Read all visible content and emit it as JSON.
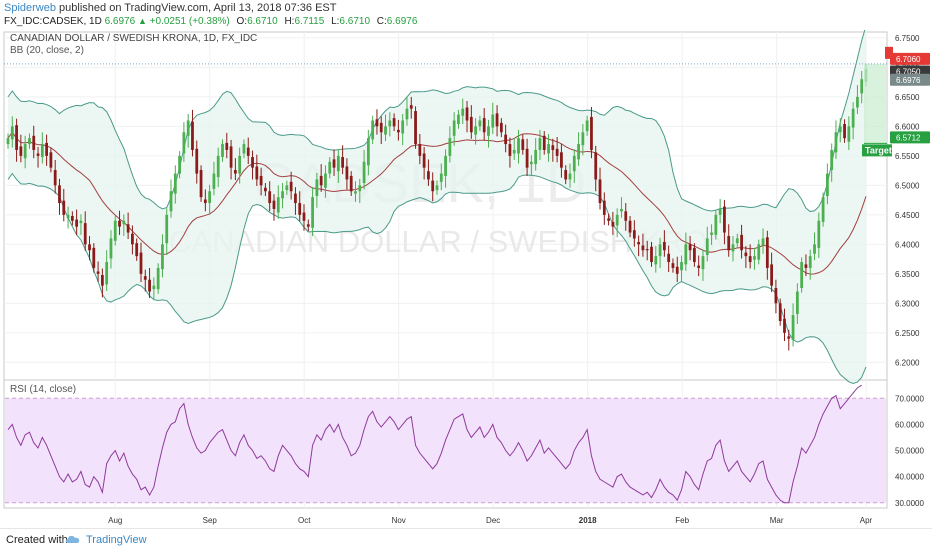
{
  "header": {
    "author": "Spiderweb",
    "published_text": "published on TradingView.com, April 13, 2018 07:36 EST",
    "symbol": "FX_IDC:CADSEK, 1D",
    "last": "6.6976",
    "change": "+0.0251 (+0.38%)",
    "o_label": "O:",
    "o_value": "6.6710",
    "h_label": "H:",
    "h_value": "6.7115",
    "l_label": "L:",
    "l_value": "6.6710",
    "c_label": "C:",
    "c_value": "6.6976"
  },
  "main_panel": {
    "title": "CANADIAN DOLLAR / SWEDISH KRONA, 1D, FX_IDC",
    "indicator": "BB (20, close, 2)",
    "watermark_symbol": "CADSEK, 1D",
    "watermark_name": "CANADIAN DOLLAR / SWEDISH KRONA"
  },
  "rsi_panel": {
    "label": "RSI (14, close)"
  },
  "price_tags": {
    "red": "6.7060",
    "dark": "6.7050",
    "grey": "6.6976",
    "target_value": "6.5712",
    "target_label": "Target"
  },
  "colors": {
    "bull": "#4caf50",
    "bear": "#8b1a1a",
    "band": "#4a9a8a",
    "band_fill": "#e5f4ef",
    "mid": "#a24040",
    "rsi_line": "#8e3b9b",
    "rsi_fill": "#f3e2fb",
    "target": "#26a040",
    "red_tag": "#e53935"
  },
  "footer": {
    "created_with": "Created with",
    "brand": "TradingView"
  },
  "chart_data": {
    "type": "candlestick",
    "price_axis": {
      "ticks": [
        "6.7500",
        "6.7000",
        "6.6500",
        "6.6000",
        "6.5500",
        "6.5000",
        "6.4500",
        "6.4000",
        "6.3500",
        "6.3000",
        "6.2500",
        "6.2000"
      ],
      "range": [
        6.17,
        6.76
      ]
    },
    "rsi_axis": {
      "ticks": [
        "70.0000",
        "60.0000",
        "50.0000",
        "40.0000",
        "30.0000"
      ],
      "range": [
        28,
        77
      ],
      "band": [
        30,
        70
      ]
    },
    "time_axis": {
      "labels": [
        "Aug",
        "Sep",
        "Oct",
        "Nov",
        "Dec",
        "2018",
        "Feb",
        "Mar",
        "Apr"
      ],
      "positions": [
        42,
        79,
        116,
        153,
        190,
        227,
        264,
        301,
        336
      ]
    },
    "close": [
      6.58,
      6.6,
      6.56,
      6.55,
      6.57,
      6.58,
      6.56,
      6.55,
      6.57,
      6.55,
      6.53,
      6.5,
      6.47,
      6.45,
      6.45,
      6.44,
      6.43,
      6.44,
      6.4,
      6.39,
      6.36,
      6.35,
      6.33,
      6.37,
      6.41,
      6.44,
      6.43,
      6.44,
      6.42,
      6.4,
      6.38,
      6.35,
      6.34,
      6.32,
      6.33,
      6.36,
      6.4,
      6.45,
      6.49,
      6.52,
      6.55,
      6.59,
      6.61,
      6.56,
      6.52,
      6.48,
      6.47,
      6.49,
      6.52,
      6.55,
      6.57,
      6.56,
      6.53,
      6.52,
      6.55,
      6.57,
      6.55,
      6.53,
      6.51,
      6.5,
      6.49,
      6.47,
      6.46,
      6.48,
      6.49,
      6.5,
      6.49,
      6.47,
      6.45,
      6.44,
      6.43,
      6.48,
      6.51,
      6.5,
      6.52,
      6.54,
      6.53,
      6.55,
      6.53,
      6.51,
      6.49,
      6.49,
      6.5,
      6.54,
      6.58,
      6.61,
      6.6,
      6.59,
      6.6,
      6.61,
      6.6,
      6.59,
      6.61,
      6.63,
      6.63,
      6.57,
      6.55,
      6.53,
      6.51,
      6.49,
      6.5,
      6.52,
      6.55,
      6.58,
      6.61,
      6.62,
      6.63,
      6.61,
      6.59,
      6.6,
      6.61,
      6.59,
      6.6,
      6.62,
      6.6,
      6.59,
      6.57,
      6.55,
      6.56,
      6.58,
      6.56,
      6.53,
      6.54,
      6.56,
      6.58,
      6.56,
      6.57,
      6.56,
      6.55,
      6.53,
      6.51,
      6.52,
      6.55,
      6.57,
      6.59,
      6.61,
      6.56,
      6.51,
      6.47,
      6.45,
      6.44,
      6.43,
      6.45,
      6.46,
      6.44,
      6.42,
      6.41,
      6.4,
      6.39,
      6.39,
      6.37,
      6.38,
      6.4,
      6.39,
      6.37,
      6.36,
      6.35,
      6.37,
      6.4,
      6.39,
      6.37,
      6.36,
      6.38,
      6.41,
      6.42,
      6.45,
      6.46,
      6.42,
      6.39,
      6.4,
      6.41,
      6.39,
      6.38,
      6.37,
      6.38,
      6.4,
      6.41,
      6.36,
      6.33,
      6.3,
      6.27,
      6.25,
      6.24,
      6.28,
      6.32,
      6.37,
      6.36,
      6.38,
      6.4,
      6.44,
      6.48,
      6.52,
      6.56,
      6.59,
      6.6,
      6.58,
      6.6,
      6.63,
      6.65,
      6.68,
      6.6976
    ],
    "rsi": [
      58,
      60,
      55,
      52,
      56,
      57,
      53,
      51,
      55,
      52,
      48,
      44,
      40,
      38,
      41,
      38,
      39,
      42,
      37,
      36,
      40,
      38,
      34,
      45,
      48,
      50,
      46,
      49,
      44,
      41,
      39,
      35,
      36,
      33,
      36,
      44,
      51,
      57,
      60,
      61,
      66,
      68,
      60,
      55,
      51,
      49,
      50,
      53,
      55,
      57,
      58,
      54,
      50,
      48,
      53,
      56,
      52,
      50,
      47,
      48,
      46,
      43,
      42,
      48,
      52,
      50,
      48,
      45,
      43,
      42,
      40,
      52,
      56,
      54,
      58,
      60,
      57,
      60,
      55,
      52,
      48,
      49,
      52,
      58,
      63,
      65,
      61,
      59,
      61,
      63,
      61,
      58,
      60,
      62,
      63,
      52,
      49,
      47,
      45,
      43,
      45,
      49,
      54,
      58,
      62,
      63,
      64,
      58,
      55,
      57,
      59,
      55,
      57,
      60,
      55,
      53,
      50,
      48,
      50,
      53,
      50,
      46,
      48,
      51,
      54,
      49,
      51,
      49,
      47,
      45,
      43,
      45,
      50,
      53,
      55,
      58,
      48,
      42,
      39,
      38,
      37,
      36,
      40,
      41,
      38,
      36,
      35,
      34,
      33,
      34,
      32,
      35,
      39,
      36,
      34,
      33,
      31,
      35,
      42,
      40,
      37,
      35,
      41,
      46,
      47,
      52,
      54,
      46,
      42,
      44,
      46,
      42,
      40,
      38,
      41,
      45,
      46,
      39,
      36,
      33,
      31,
      30,
      30,
      38,
      44,
      51,
      49,
      52,
      55,
      60,
      64,
      67,
      70,
      71,
      66,
      68,
      70,
      72,
      74,
      75
    ],
    "band_start_pos": 0,
    "lower_segment_start": 160
  }
}
